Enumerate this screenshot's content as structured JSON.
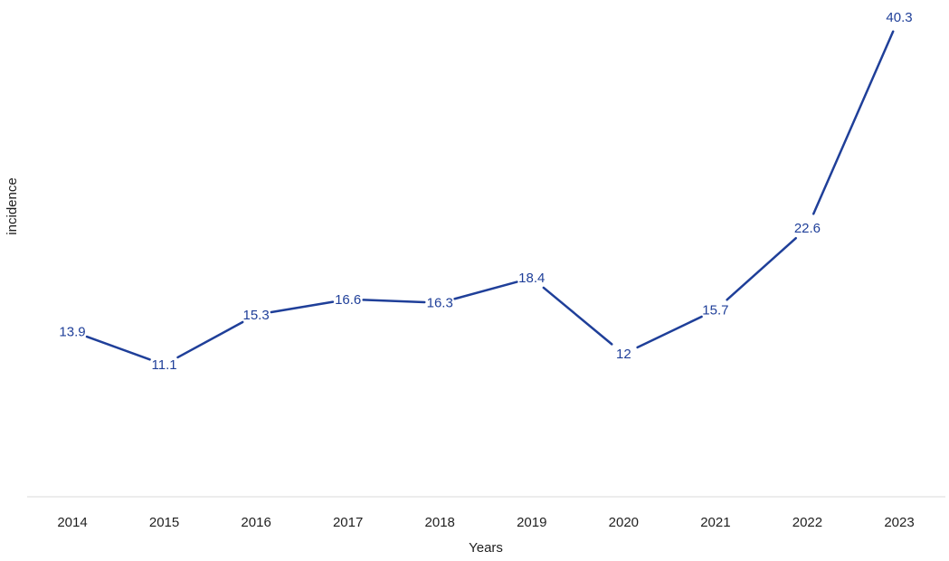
{
  "chart_data": {
    "type": "line",
    "title": "",
    "xlabel": "Years",
    "ylabel": "incidence",
    "categories": [
      "2014",
      "2015",
      "2016",
      "2017",
      "2018",
      "2019",
      "2020",
      "2021",
      "2022",
      "2023"
    ],
    "series": [
      {
        "values": [
          13.9,
          11.1,
          15.3,
          16.6,
          16.3,
          18.4,
          12,
          15.7,
          22.6,
          40.3
        ]
      }
    ],
    "data_labels": [
      "13.9",
      "11.1",
      "15.3",
      "16.6",
      "16.3",
      "18.4",
      "12",
      "15.7",
      "22.6",
      "40.3"
    ],
    "ylim": [
      0,
      41
    ],
    "grid": false,
    "legend": "none",
    "colors": {
      "line": "#1f3f99",
      "data_label": "#1f3f99",
      "axis": "#d9d9d9",
      "text": "#1f1f1f"
    }
  }
}
